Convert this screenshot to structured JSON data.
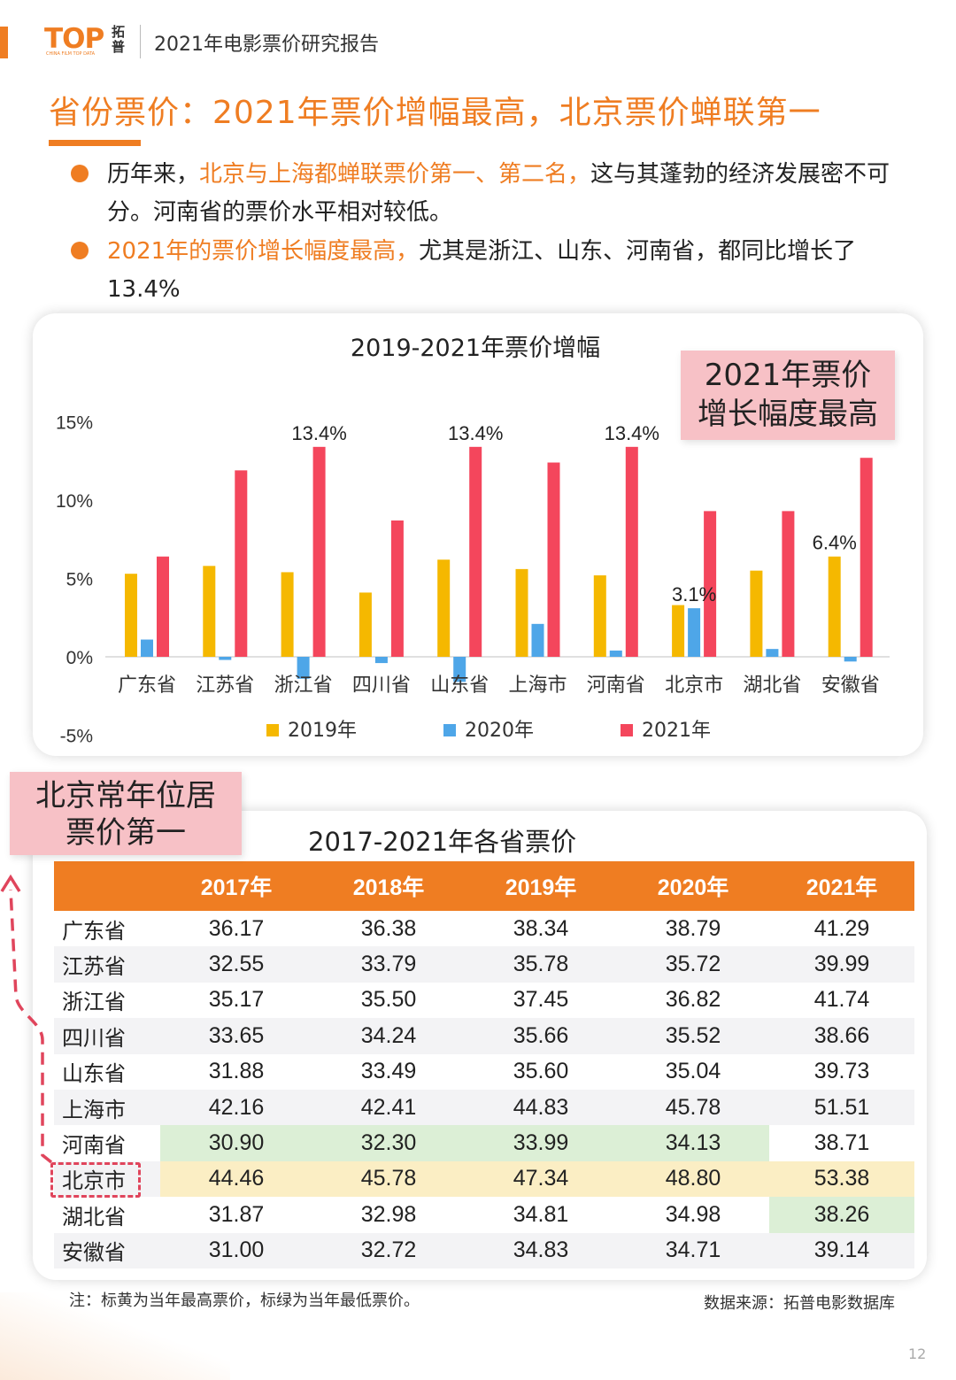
{
  "header": {
    "logo_text": "TOP",
    "logo_cn": "拓普",
    "logo_sub": "CHINA FILM TOP DATA",
    "report_title": "2021年电影票价研究报告"
  },
  "main_title": "省份票价：2021年票价增幅最高，北京票价蝉联第一",
  "bullets": [
    {
      "pre": "历年来，",
      "highlight": "北京与上海都蝉联票价第一、第二名，",
      "post": "这与其蓬勃的经济发展密不可分。河南省的票价水平相对较低。"
    },
    {
      "pre": "",
      "highlight": "2021年的票价增长幅度最高，",
      "post": "尤其是浙江、山东、河南省，都同比增长了13.4%"
    }
  ],
  "callout_chart": "2021年票价\n增长幅度最高",
  "callout_table": "北京常年位居\n票价第一",
  "chart_data": {
    "type": "bar",
    "title": "2019-2021年票价增幅",
    "categories": [
      "广东省",
      "江苏省",
      "浙江省",
      "四川省",
      "山东省",
      "上海市",
      "河南省",
      "北京市",
      "湖北省",
      "安徽省"
    ],
    "series": [
      {
        "name": "2019年",
        "color": "#f5b800",
        "values": [
          5.3,
          5.8,
          5.4,
          4.1,
          6.2,
          5.6,
          5.2,
          3.3,
          5.5,
          6.4
        ]
      },
      {
        "name": "2020年",
        "color": "#4ea6e8",
        "values": [
          1.1,
          -0.2,
          -1.4,
          -0.4,
          -1.6,
          2.1,
          0.4,
          3.1,
          0.5,
          -0.3
        ]
      },
      {
        "name": "2021年",
        "color": "#f4465c",
        "values": [
          6.4,
          11.9,
          13.4,
          8.7,
          13.4,
          12.4,
          13.4,
          9.3,
          9.3,
          12.7
        ]
      }
    ],
    "data_labels": [
      {
        "text": "13.4%",
        "category": "浙江省",
        "series": "2021年"
      },
      {
        "text": "13.4%",
        "category": "山东省",
        "series": "2021年"
      },
      {
        "text": "13.4%",
        "category": "河南省",
        "series": "2021年"
      },
      {
        "text": "3.1%",
        "category": "北京市",
        "series": "2020年"
      },
      {
        "text": "6.4%",
        "category": "安徽省",
        "series": "2019年"
      }
    ],
    "yticks": [
      "15%",
      "10%",
      "5%",
      "0%",
      "-5%"
    ],
    "ylim": [
      -5,
      15
    ],
    "grid": false,
    "legend_position": "bottom"
  },
  "table": {
    "title": "2017-2021年各省票价",
    "headers": [
      "",
      "2017年",
      "2018年",
      "2019年",
      "2020年",
      "2021年"
    ],
    "rows": [
      [
        "广东省",
        "36.17",
        "36.38",
        "38.34",
        "38.79",
        "41.29"
      ],
      [
        "江苏省",
        "32.55",
        "33.79",
        "35.78",
        "35.72",
        "39.99"
      ],
      [
        "浙江省",
        "35.17",
        "35.50",
        "37.45",
        "36.82",
        "41.74"
      ],
      [
        "四川省",
        "33.65",
        "34.24",
        "35.66",
        "35.52",
        "38.66"
      ],
      [
        "山东省",
        "31.88",
        "33.49",
        "35.60",
        "35.04",
        "39.73"
      ],
      [
        "上海市",
        "42.16",
        "42.41",
        "44.83",
        "45.78",
        "51.51"
      ],
      [
        "河南省",
        "30.90",
        "32.30",
        "33.99",
        "34.13",
        "38.71"
      ],
      [
        "北京市",
        "44.46",
        "45.78",
        "47.34",
        "48.80",
        "53.38"
      ],
      [
        "湖北省",
        "31.87",
        "32.98",
        "34.81",
        "34.98",
        "38.26"
      ],
      [
        "安徽省",
        "31.00",
        "32.72",
        "34.83",
        "34.71",
        "39.14"
      ]
    ],
    "highlight_colors": {
      "highest": "#fbeec4",
      "lowest": "#dcefd6"
    }
  },
  "note": "注：标黄为当年最高票价，标绿为当年最低票价。",
  "source": "数据来源：拓普电影数据库",
  "page_number": "12"
}
